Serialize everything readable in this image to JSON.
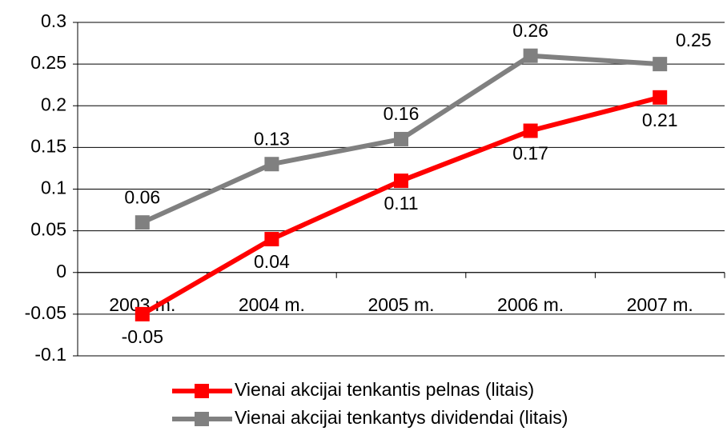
{
  "chart_data": {
    "type": "line",
    "categories": [
      "2003 m.",
      "2004 m.",
      "2005 m.",
      "2006 m.",
      "2007 m."
    ],
    "series": [
      {
        "name": "Vienai akcijai tenkantis pelnas (litais)",
        "color": "#ff0000",
        "values": [
          -0.05,
          0.04,
          0.11,
          0.17,
          0.21
        ]
      },
      {
        "name": "Vienai akcijai tenkantys dividendai (litais)",
        "color": "#808080",
        "values": [
          0.06,
          0.13,
          0.16,
          0.26,
          0.25
        ]
      }
    ],
    "ylim": [
      -0.1,
      0.3
    ],
    "yticks": [
      -0.1,
      -0.05,
      0,
      0.05,
      0.1,
      0.15,
      0.2,
      0.25,
      0.3
    ],
    "grid": true,
    "legend": "bottom"
  }
}
